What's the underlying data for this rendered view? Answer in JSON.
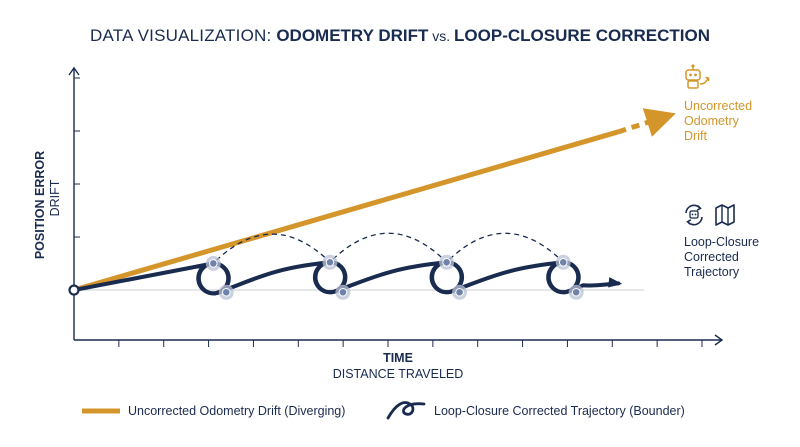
{
  "title": {
    "prefix": "DATA VISUALIZATION: ",
    "part1": "ODOMETRY DRIFT",
    "connector": " vs. ",
    "part2": "LOOP-CLOSURE CORRECTION"
  },
  "colors": {
    "navy": "#1a2b50",
    "orange": "#d4952b",
    "node_halo": "#b9c2d6",
    "node_fill": "#6f83aa",
    "baseline": "#c9ccd3"
  },
  "icons": {
    "drift": "robot-icon",
    "corrected_loop": "loop-arrows-icon",
    "corrected_map": "map-icon"
  },
  "chart_data": {
    "type": "line",
    "title": "DATA VISUALIZATION: ODOMETRY DRIFT vs. LOOP-CLOSURE CORRECTION",
    "xlabel": "TIME",
    "xlabel_sub": "DISTANCE TRAVELED",
    "ylabel": "POSITION ERROR",
    "ylabel_sub": "DRIFT",
    "xlim": [
      0,
      100
    ],
    "ylim": [
      -9,
      40
    ],
    "x_ticks": 14,
    "y_ticks": 4,
    "grid": false,
    "legend_position": "bottom",
    "series": [
      {
        "name": "Uncorrected Odometry Drift (Diverging)",
        "color": "#d4952b",
        "style": "solid-then-dashed-arrow",
        "points": [
          [
            0,
            0
          ],
          [
            84,
            28.5
          ]
        ],
        "extension_to": [
          92,
          31.5
        ],
        "annotation": [
          "Uncorrected",
          "Odometry",
          "Drift"
        ]
      },
      {
        "name": "Loop-Closure Corrected Trajectory (Bounder)",
        "color": "#1a2b50",
        "style": "solid-with-loops",
        "points": [
          [
            0,
            0
          ],
          [
            21.5,
            4.8
          ],
          [
            39.5,
            5
          ],
          [
            57.5,
            5
          ],
          [
            75.5,
            5
          ],
          [
            84,
            1.2
          ]
        ],
        "loop_closures": [
          {
            "from": [
              21.5,
              4.8
            ],
            "to": [
              39.5,
              5
            ]
          },
          {
            "from": [
              39.5,
              5
            ],
            "to": [
              57.5,
              5
            ]
          },
          {
            "from": [
              57.5,
              5
            ],
            "to": [
              75.5,
              5
            ]
          }
        ],
        "nodes": [
          [
            21.5,
            4.8
          ],
          [
            23.5,
            -0.4
          ],
          [
            39.5,
            5
          ],
          [
            41.5,
            -0.4
          ],
          [
            57.5,
            5
          ],
          [
            59.5,
            -0.4
          ],
          [
            75.5,
            5
          ],
          [
            77.5,
            -0.4
          ]
        ],
        "annotation": [
          "Loop-Closure",
          "Corrected",
          "Trajectory"
        ]
      }
    ]
  },
  "legend": {
    "drift_label": "Uncorrected Odometry Drift (Diverging)",
    "corrected_label": "Loop-Closure Corrected Trajectory (Bounder)"
  }
}
